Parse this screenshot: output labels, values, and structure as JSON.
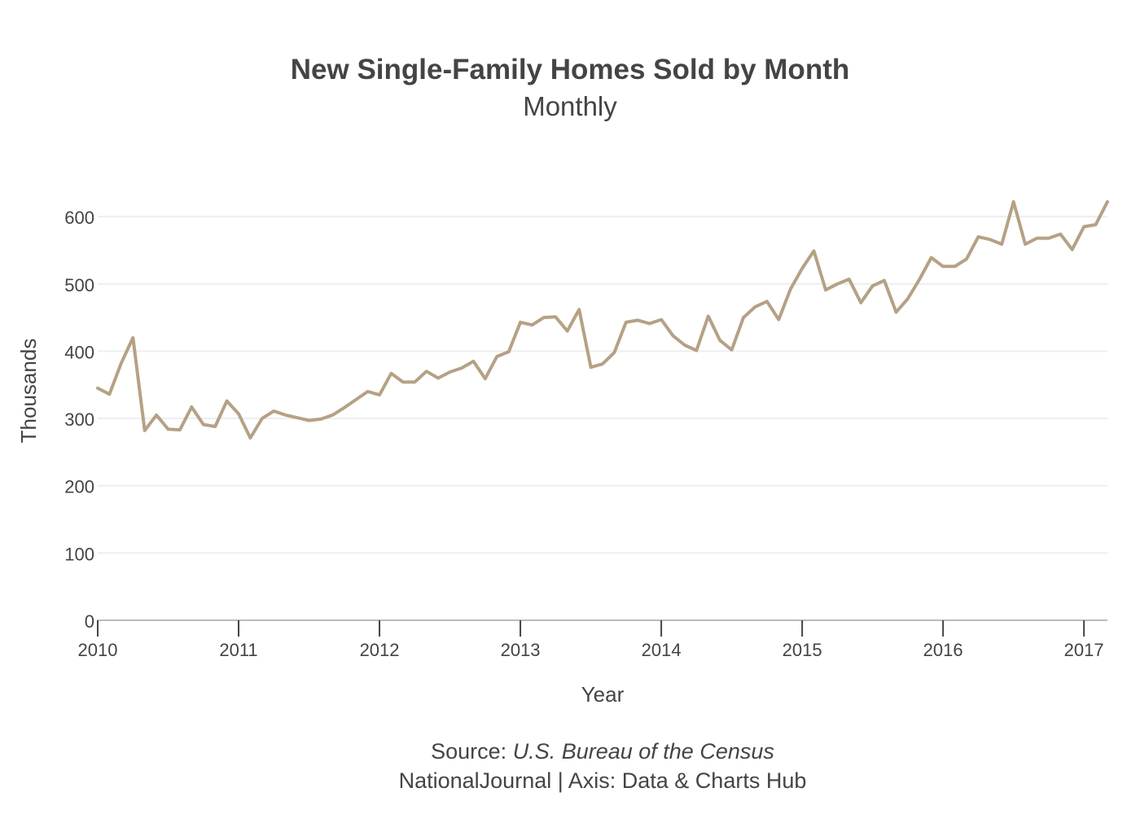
{
  "title": "New Single-Family Homes Sold by Month",
  "subtitle": "Monthly",
  "footer": {
    "source_prefix": "Source:",
    "source_name": "U.S. Bureau of the Census",
    "credit": "NationalJournal | Axis: Data & Charts Hub"
  },
  "colors": {
    "line": "#b5a185",
    "grid": "#eeeeee",
    "axis": "#bbbbbb",
    "text": "#444444"
  },
  "chart_data": {
    "type": "line",
    "title": "New Single-Family Homes Sold by Month",
    "subtitle": "Monthly",
    "xlabel": "Year",
    "ylabel": "Thousands",
    "ylim": [
      0,
      680
    ],
    "xlim": [
      "2010-01",
      "2017-03"
    ],
    "y_ticks": [
      0,
      100,
      200,
      300,
      400,
      500,
      600
    ],
    "x_ticks": [
      "2010",
      "2011",
      "2012",
      "2013",
      "2014",
      "2015",
      "2016",
      "2017"
    ],
    "grid": true,
    "legend": "none",
    "series": [
      {
        "x": [
          "2010-01",
          "2010-02",
          "2010-03",
          "2010-04",
          "2010-05",
          "2010-06",
          "2010-07",
          "2010-08",
          "2010-09",
          "2010-10",
          "2010-11",
          "2010-12",
          "2011-01",
          "2011-02",
          "2011-03",
          "2011-04",
          "2011-05",
          "2011-06",
          "2011-07",
          "2011-08",
          "2011-09",
          "2011-10",
          "2011-11",
          "2011-12",
          "2012-01",
          "2012-02",
          "2012-03",
          "2012-04",
          "2012-05",
          "2012-06",
          "2012-07",
          "2012-08",
          "2012-09",
          "2012-10",
          "2012-11",
          "2012-12",
          "2013-01",
          "2013-02",
          "2013-03",
          "2013-04",
          "2013-05",
          "2013-06",
          "2013-07",
          "2013-08",
          "2013-09",
          "2013-10",
          "2013-11",
          "2013-12",
          "2014-01",
          "2014-02",
          "2014-03",
          "2014-04",
          "2014-05",
          "2014-06",
          "2014-07",
          "2014-08",
          "2014-09",
          "2014-10",
          "2014-11",
          "2014-12",
          "2015-01",
          "2015-02",
          "2015-03",
          "2015-04",
          "2015-05",
          "2015-06",
          "2015-07",
          "2015-08",
          "2015-09",
          "2015-10",
          "2015-11",
          "2015-12",
          "2016-01",
          "2016-02",
          "2016-03",
          "2016-04",
          "2016-05",
          "2016-06",
          "2016-07",
          "2016-08",
          "2016-09",
          "2016-10",
          "2016-11",
          "2016-12",
          "2017-01",
          "2017-02",
          "2017-03"
        ],
        "values": [
          345,
          336,
          382,
          420,
          282,
          305,
          284,
          283,
          317,
          291,
          288,
          326,
          307,
          271,
          300,
          311,
          305,
          301,
          297,
          299,
          305,
          316,
          328,
          340,
          335,
          367,
          354,
          354,
          370,
          360,
          369,
          375,
          385,
          359,
          392,
          399,
          443,
          439,
          450,
          451,
          430,
          462,
          376,
          381,
          398,
          443,
          446,
          441,
          447,
          423,
          409,
          401,
          452,
          416,
          402,
          450,
          466,
          474,
          447,
          492,
          523,
          549,
          491,
          500,
          507,
          472,
          497,
          505,
          458,
          478,
          507,
          539,
          526,
          526,
          537,
          570,
          566,
          559,
          622,
          559,
          568,
          568,
          574,
          551,
          585,
          588,
          622
        ]
      }
    ]
  }
}
